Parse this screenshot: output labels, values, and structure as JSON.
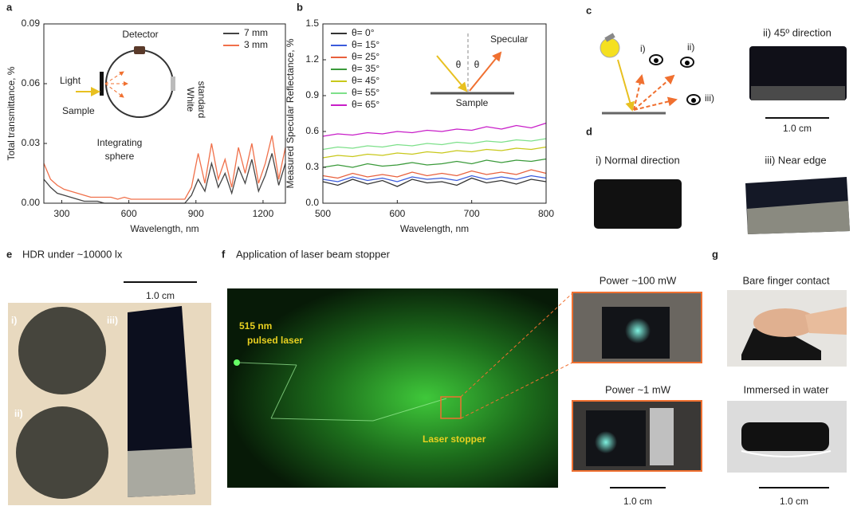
{
  "chart_data": [
    {
      "type": "line",
      "x_label": "Wavelength, nm",
      "y_label": "Total transmittance, %",
      "x": [
        220,
        250,
        280,
        310,
        340,
        370,
        400,
        430,
        460,
        490,
        520,
        550,
        580,
        610,
        640,
        670,
        700,
        730,
        760,
        790,
        820,
        850,
        880,
        910,
        940,
        970,
        1000,
        1030,
        1060,
        1090,
        1120,
        1150,
        1180,
        1210,
        1240,
        1270,
        1300
      ],
      "series": [
        {
          "name": "7 mm",
          "color": "#444444",
          "values": [
            0.012,
            0.008,
            0.005,
            0.004,
            0.003,
            0.002,
            0.001,
            0.001,
            0.001,
            0,
            0,
            0,
            0,
            0,
            0,
            0,
            0,
            0,
            0,
            0,
            0,
            0,
            0.004,
            0.012,
            0.006,
            0.02,
            0.008,
            0.015,
            0.005,
            0.018,
            0.01,
            0.022,
            0.006,
            0.014,
            0.025,
            0.009,
            0.02
          ]
        },
        {
          "name": "3 mm",
          "color": "#f0704a",
          "values": [
            0.02,
            0.012,
            0.009,
            0.007,
            0.006,
            0.005,
            0.004,
            0.003,
            0.003,
            0.003,
            0.003,
            0.002,
            0.003,
            0.002,
            0.002,
            0.002,
            0.002,
            0.002,
            0.002,
            0.002,
            0.002,
            0.002,
            0.008,
            0.025,
            0.01,
            0.03,
            0.012,
            0.022,
            0.008,
            0.028,
            0.015,
            0.03,
            0.01,
            0.02,
            0.034,
            0.012,
            0.028
          ]
        }
      ],
      "xlim": [
        220,
        1300
      ],
      "xticks": [
        300,
        600,
        900,
        1200
      ],
      "ylim": [
        0,
        0.09
      ],
      "yticks": [
        {
          "value": 0,
          "label": "0.00"
        },
        0.03,
        0.06,
        0.09
      ],
      "legend": "upper right",
      "annotations": [
        "Detector",
        "Light",
        "Sample",
        "Integrating",
        "sphere",
        "White",
        "standard"
      ]
    },
    {
      "type": "line",
      "x_label": "Wavelength, nm",
      "y_label": "Measured Specular Reflectance, %",
      "x": [
        500,
        520,
        540,
        560,
        580,
        600,
        620,
        640,
        660,
        680,
        700,
        720,
        740,
        760,
        780,
        800
      ],
      "series": [
        {
          "name": "θ= 0°",
          "color": "#333333",
          "values": [
            0.18,
            0.15,
            0.2,
            0.16,
            0.19,
            0.14,
            0.2,
            0.17,
            0.18,
            0.15,
            0.21,
            0.17,
            0.19,
            0.16,
            0.2,
            0.18
          ]
        },
        {
          "name": "θ= 15°",
          "color": "#3b5bdb",
          "values": [
            0.2,
            0.18,
            0.22,
            0.19,
            0.21,
            0.18,
            0.22,
            0.2,
            0.21,
            0.19,
            0.23,
            0.2,
            0.22,
            0.2,
            0.23,
            0.21
          ]
        },
        {
          "name": "θ= 25°",
          "color": "#e8603c",
          "values": [
            0.23,
            0.21,
            0.25,
            0.22,
            0.24,
            0.22,
            0.26,
            0.23,
            0.25,
            0.23,
            0.27,
            0.24,
            0.26,
            0.24,
            0.28,
            0.25
          ]
        },
        {
          "name": "θ= 35°",
          "color": "#3a9a3a",
          "values": [
            0.3,
            0.32,
            0.3,
            0.33,
            0.31,
            0.32,
            0.34,
            0.32,
            0.33,
            0.35,
            0.33,
            0.36,
            0.34,
            0.36,
            0.35,
            0.37
          ]
        },
        {
          "name": "θ= 45°",
          "color": "#c8c81a",
          "values": [
            0.38,
            0.4,
            0.39,
            0.41,
            0.4,
            0.42,
            0.41,
            0.43,
            0.42,
            0.44,
            0.43,
            0.45,
            0.44,
            0.46,
            0.45,
            0.47
          ]
        },
        {
          "name": "θ= 55°",
          "color": "#7de08a",
          "values": [
            0.45,
            0.47,
            0.46,
            0.48,
            0.47,
            0.49,
            0.48,
            0.5,
            0.49,
            0.51,
            0.5,
            0.52,
            0.51,
            0.53,
            0.52,
            0.54
          ]
        },
        {
          "name": "θ= 65°",
          "color": "#c81ec8",
          "values": [
            0.56,
            0.58,
            0.57,
            0.59,
            0.58,
            0.6,
            0.59,
            0.61,
            0.6,
            0.62,
            0.61,
            0.64,
            0.62,
            0.65,
            0.63,
            0.67
          ]
        }
      ],
      "xlim": [
        500,
        800
      ],
      "xticks": [
        500,
        600,
        700,
        800
      ],
      "ylim": [
        0,
        1.5
      ],
      "yticks": [
        {
          "value": 0,
          "label": "0.0"
        },
        0.3,
        0.6,
        0.9,
        1.2,
        1.5
      ],
      "legend": "upper left",
      "annotations": [
        "Specular",
        "θ",
        "θ",
        "Sample"
      ]
    }
  ],
  "panel_labels": [
    "a",
    "b",
    "c",
    "d",
    "e",
    "f",
    "g"
  ],
  "panel_c": {
    "diagram_labels": [
      "i)",
      "ii)",
      "iii)"
    ],
    "photo_caption": "ii) 45º direction",
    "scale": "1.0 cm"
  },
  "panel_d": {
    "captions": [
      "i) Normal direction",
      "iii) Near edge"
    ]
  },
  "panel_e": {
    "title": "HDR under ~10000 lx",
    "scale": "1.0 cm",
    "labels": [
      "i)",
      "ii)",
      "iii)"
    ]
  },
  "panel_f": {
    "title": "Application of laser beam stopper",
    "laser_label": [
      "515 nm",
      "pulsed laser"
    ],
    "stopper_label": "Laser stopper",
    "insets": [
      "Power ~100 mW",
      "Power ~1 mW"
    ],
    "scale": "1.0 cm"
  },
  "panel_g": {
    "captions": [
      "Bare finger contact",
      "Immersed in water"
    ],
    "scale": "1.0 cm"
  }
}
